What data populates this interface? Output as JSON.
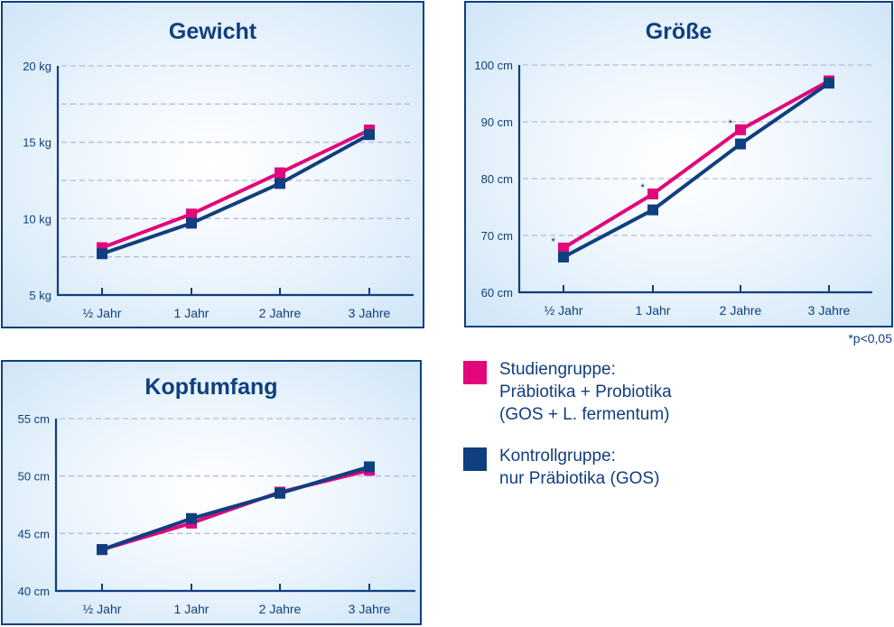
{
  "colors": {
    "studien": "#e2077a",
    "kontroll": "#0f3f7e"
  },
  "chart_data": [
    {
      "type": "line",
      "title": "Gewicht",
      "categories": [
        "½ Jahr",
        "1 Jahr",
        "2 Jahre",
        "3 Jahre"
      ],
      "yticks": [
        "5 kg",
        "10 kg",
        "15 kg",
        "20 kg"
      ],
      "ytick_values": [
        5,
        10,
        15,
        20
      ],
      "ylim": [
        5,
        20
      ],
      "minor_grid": [
        7.5,
        12.5,
        17.5
      ],
      "series": [
        {
          "name": "Studiengruppe",
          "values": [
            8.1,
            10.3,
            13.0,
            15.8
          ]
        },
        {
          "name": "Kontrollgruppe",
          "values": [
            7.7,
            9.7,
            12.3,
            15.5
          ]
        }
      ],
      "annotations": []
    },
    {
      "type": "line",
      "title": "Größe",
      "categories": [
        "½ Jahr",
        "1 Jahr",
        "2 Jahre",
        "3 Jahre"
      ],
      "yticks": [
        "60 cm",
        "70 cm",
        "80 cm",
        "90 cm",
        "100 cm"
      ],
      "ytick_values": [
        60,
        70,
        80,
        90,
        100
      ],
      "ylim": [
        60,
        100
      ],
      "minor_grid": [],
      "series": [
        {
          "name": "Studiengruppe",
          "values": [
            67.8,
            77.3,
            88.6,
            97.2
          ]
        },
        {
          "name": "Kontrollgruppe",
          "values": [
            66.2,
            74.5,
            86.1,
            96.8
          ]
        }
      ],
      "annotations": [
        "*",
        "*",
        "*",
        ""
      ]
    },
    {
      "type": "line",
      "title": "Kopfumfang",
      "categories": [
        "½ Jahr",
        "1 Jahr",
        "2 Jahre",
        "3 Jahre"
      ],
      "yticks": [
        "40 cm",
        "45 cm",
        "50 cm",
        "55 cm"
      ],
      "ytick_values": [
        40,
        45,
        50,
        55
      ],
      "ylim": [
        40,
        55
      ],
      "minor_grid": [],
      "series": [
        {
          "name": "Studiengruppe",
          "values": [
            43.6,
            45.9,
            48.6,
            50.5
          ]
        },
        {
          "name": "Kontrollgruppe",
          "values": [
            43.6,
            46.3,
            48.5,
            50.8
          ]
        }
      ],
      "annotations": []
    }
  ],
  "note": "*p<0,05",
  "legend": [
    {
      "lines": [
        "Studiengruppe:",
        "Präbiotika + Probiotika",
        "(GOS + L. fermentum)"
      ]
    },
    {
      "lines": [
        "Kontrollgruppe:",
        "nur Präbiotika (GOS)"
      ]
    }
  ]
}
